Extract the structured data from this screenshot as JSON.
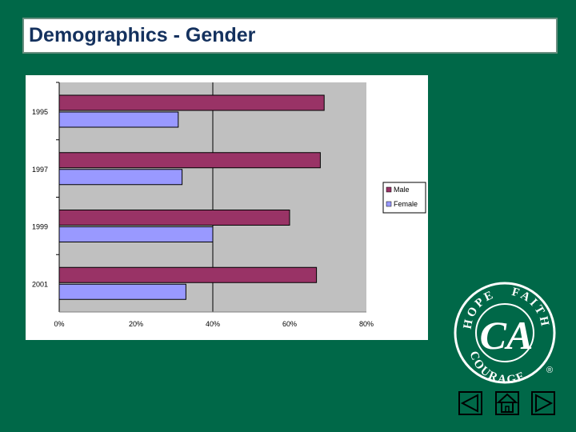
{
  "slide": {
    "title": "Demographics - Gender"
  },
  "chart_data": {
    "type": "bar",
    "orientation": "horizontal",
    "categories": [
      "1995",
      "1997",
      "1999",
      "2001"
    ],
    "series": [
      {
        "name": "Male",
        "values": [
          69,
          68,
          60,
          67
        ],
        "color": "#993366"
      },
      {
        "name": "Female",
        "values": [
          31,
          32,
          40,
          33
        ],
        "color": "#9999ff"
      }
    ],
    "x_ticks": [
      "0%",
      "20%",
      "40%",
      "60%",
      "80%"
    ],
    "xlim": [
      0,
      80
    ],
    "unit": "%",
    "gridlines": [
      40
    ],
    "plot_background": "#c0c0c0",
    "legend_position": "right"
  },
  "logo": {
    "ring_top_left": "HOPE",
    "ring_top_right": "FAITH",
    "ring_bottom": "COURAGE",
    "monogram": "CA",
    "registered": "®"
  },
  "navigation": {
    "prev_icon": "triangle-left-icon",
    "home_icon": "home-icon",
    "next_icon": "triangle-right-icon"
  },
  "colors": {
    "background": "#006848",
    "title_text": "#14315e",
    "male": "#993366",
    "female": "#9999ff"
  }
}
